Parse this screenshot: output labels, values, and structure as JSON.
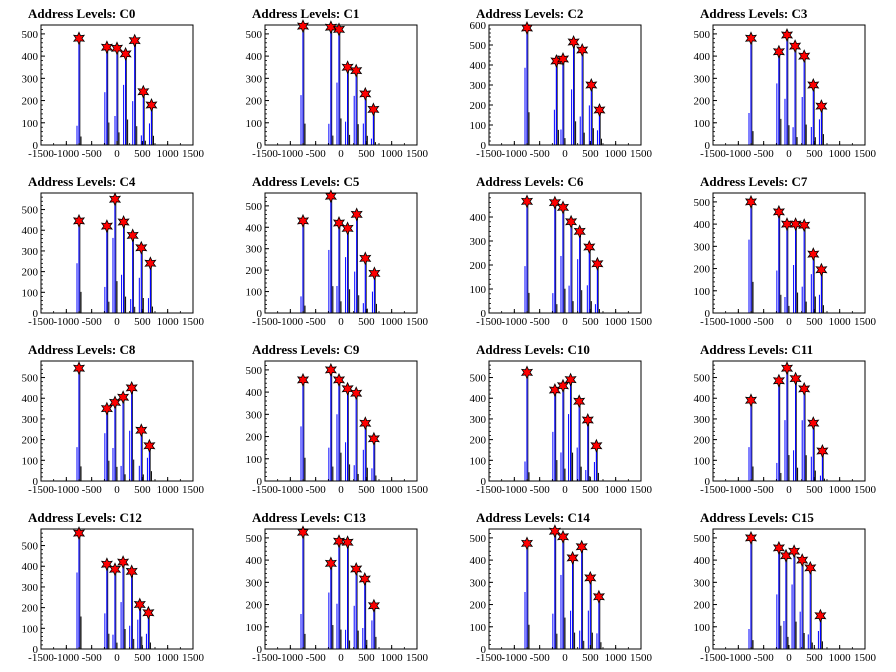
{
  "figure": {
    "title_prefix": "Address Levels: ",
    "colors": {
      "histogram_blue": "#0000ff",
      "histogram_black": "#000000",
      "marker_red": "#ff0000",
      "axis": "#000000"
    }
  },
  "chart_data": [
    {
      "type": "bar",
      "title": "Address Levels: C0",
      "xlim": [
        -1500,
        1500
      ],
      "ylim": [
        0,
        540
      ],
      "xticks": [
        -1500,
        -1000,
        -500,
        0,
        500,
        1000,
        1500
      ],
      "yticks": [
        0,
        100,
        200,
        300,
        400,
        500
      ],
      "peaks": [
        {
          "x": -750,
          "y": 480
        },
        {
          "x": -200,
          "y": 440
        },
        {
          "x": 0,
          "y": 435
        },
        {
          "x": 170,
          "y": 410
        },
        {
          "x": 350,
          "y": 470
        },
        {
          "x": 520,
          "y": 240
        },
        {
          "x": 680,
          "y": 180
        }
      ]
    },
    {
      "type": "bar",
      "title": "Address Levels: C1",
      "xlim": [
        -1500,
        1500
      ],
      "ylim": [
        0,
        540
      ],
      "xticks": [
        -1500,
        -1000,
        -500,
        0,
        500,
        1000,
        1500
      ],
      "yticks": [
        0,
        100,
        200,
        300,
        400,
        500
      ],
      "peaks": [
        {
          "x": -750,
          "y": 535
        },
        {
          "x": -200,
          "y": 530
        },
        {
          "x": -40,
          "y": 520
        },
        {
          "x": 130,
          "y": 350
        },
        {
          "x": 300,
          "y": 335
        },
        {
          "x": 480,
          "y": 230
        },
        {
          "x": 640,
          "y": 160
        }
      ]
    },
    {
      "type": "bar",
      "title": "Address Levels: C2",
      "xlim": [
        -1500,
        1500
      ],
      "ylim": [
        0,
        600
      ],
      "xticks": [
        -1500,
        -1000,
        -500,
        0,
        500,
        1000,
        1500
      ],
      "yticks": [
        0,
        100,
        200,
        300,
        400,
        500,
        600
      ],
      "peaks": [
        {
          "x": -750,
          "y": 585
        },
        {
          "x": -170,
          "y": 420
        },
        {
          "x": -40,
          "y": 430
        },
        {
          "x": 170,
          "y": 515
        },
        {
          "x": 340,
          "y": 475
        },
        {
          "x": 520,
          "y": 300
        },
        {
          "x": 680,
          "y": 175
        }
      ]
    },
    {
      "type": "bar",
      "title": "Address Levels: C3",
      "xlim": [
        -1500,
        1500
      ],
      "ylim": [
        0,
        540
      ],
      "xticks": [
        -1500,
        -1000,
        -500,
        0,
        500,
        1000,
        1500
      ],
      "yticks": [
        0,
        100,
        200,
        300,
        400,
        500
      ],
      "peaks": [
        {
          "x": -750,
          "y": 480
        },
        {
          "x": -200,
          "y": 420
        },
        {
          "x": -40,
          "y": 495
        },
        {
          "x": 120,
          "y": 445
        },
        {
          "x": 300,
          "y": 400
        },
        {
          "x": 480,
          "y": 270
        },
        {
          "x": 640,
          "y": 175
        }
      ]
    },
    {
      "type": "bar",
      "title": "Address Levels: C4",
      "xlim": [
        -1500,
        1500
      ],
      "ylim": [
        0,
        580
      ],
      "xticks": [
        -1500,
        -1000,
        -500,
        0,
        500,
        1000,
        1500
      ],
      "yticks": [
        0,
        100,
        200,
        300,
        400,
        500
      ],
      "peaks": [
        {
          "x": -750,
          "y": 445
        },
        {
          "x": -200,
          "y": 420
        },
        {
          "x": -40,
          "y": 550
        },
        {
          "x": 130,
          "y": 440
        },
        {
          "x": 310,
          "y": 375
        },
        {
          "x": 480,
          "y": 315
        },
        {
          "x": 660,
          "y": 240
        }
      ]
    },
    {
      "type": "bar",
      "title": "Address Levels: C5",
      "xlim": [
        -1500,
        1500
      ],
      "ylim": [
        0,
        560
      ],
      "xticks": [
        -1500,
        -1000,
        -500,
        0,
        500,
        1000,
        1500
      ],
      "yticks": [
        0,
        100,
        200,
        300,
        400,
        500
      ],
      "peaks": [
        {
          "x": -750,
          "y": 430
        },
        {
          "x": -200,
          "y": 545
        },
        {
          "x": -40,
          "y": 420
        },
        {
          "x": 130,
          "y": 395
        },
        {
          "x": 310,
          "y": 460
        },
        {
          "x": 480,
          "y": 255
        },
        {
          "x": 660,
          "y": 185
        }
      ]
    },
    {
      "type": "bar",
      "title": "Address Levels: C6",
      "xlim": [
        -1500,
        1500
      ],
      "ylim": [
        0,
        500
      ],
      "xticks": [
        -1500,
        -1000,
        -500,
        0,
        500,
        1000,
        1500
      ],
      "yticks": [
        0,
        100,
        200,
        300,
        400
      ],
      "peaks": [
        {
          "x": -750,
          "y": 465
        },
        {
          "x": -200,
          "y": 460
        },
        {
          "x": -40,
          "y": 440
        },
        {
          "x": 120,
          "y": 380
        },
        {
          "x": 290,
          "y": 340
        },
        {
          "x": 480,
          "y": 275
        },
        {
          "x": 640,
          "y": 205
        }
      ]
    },
    {
      "type": "bar",
      "title": "Address Levels: C7",
      "xlim": [
        -1500,
        1500
      ],
      "ylim": [
        0,
        540
      ],
      "xticks": [
        -1500,
        -1000,
        -500,
        0,
        500,
        1000,
        1500
      ],
      "yticks": [
        0,
        100,
        200,
        300,
        400,
        500
      ],
      "peaks": [
        {
          "x": -750,
          "y": 500
        },
        {
          "x": -200,
          "y": 455
        },
        {
          "x": -40,
          "y": 400
        },
        {
          "x": 130,
          "y": 400
        },
        {
          "x": 300,
          "y": 395
        },
        {
          "x": 480,
          "y": 265
        },
        {
          "x": 640,
          "y": 195
        }
      ]
    },
    {
      "type": "bar",
      "title": "Address Levels: C8",
      "xlim": [
        -1500,
        1500
      ],
      "ylim": [
        0,
        580
      ],
      "xticks": [
        -1500,
        -1000,
        -500,
        0,
        500,
        1000,
        1500
      ],
      "yticks": [
        0,
        100,
        200,
        300,
        400,
        500
      ],
      "peaks": [
        {
          "x": -750,
          "y": 545
        },
        {
          "x": -200,
          "y": 350
        },
        {
          "x": -40,
          "y": 380
        },
        {
          "x": 120,
          "y": 405
        },
        {
          "x": 290,
          "y": 450
        },
        {
          "x": 480,
          "y": 245
        },
        {
          "x": 640,
          "y": 170
        }
      ]
    },
    {
      "type": "bar",
      "title": "Address Levels: C9",
      "xlim": [
        -1500,
        1500
      ],
      "ylim": [
        0,
        540
      ],
      "xticks": [
        -1500,
        -1000,
        -500,
        0,
        500,
        1000,
        1500
      ],
      "yticks": [
        0,
        100,
        200,
        300,
        400,
        500
      ],
      "peaks": [
        {
          "x": -750,
          "y": 455
        },
        {
          "x": -200,
          "y": 500
        },
        {
          "x": -40,
          "y": 455
        },
        {
          "x": 130,
          "y": 415
        },
        {
          "x": 300,
          "y": 395
        },
        {
          "x": 480,
          "y": 260
        },
        {
          "x": 650,
          "y": 190
        }
      ]
    },
    {
      "type": "bar",
      "title": "Address Levels: C10",
      "xlim": [
        -1500,
        1500
      ],
      "ylim": [
        0,
        580
      ],
      "xticks": [
        -1500,
        -1000,
        -500,
        0,
        500,
        1000,
        1500
      ],
      "yticks": [
        0,
        100,
        200,
        300,
        400,
        500
      ],
      "peaks": [
        {
          "x": -750,
          "y": 525
        },
        {
          "x": -200,
          "y": 440
        },
        {
          "x": -40,
          "y": 460
        },
        {
          "x": 110,
          "y": 490
        },
        {
          "x": 280,
          "y": 385
        },
        {
          "x": 450,
          "y": 295
        },
        {
          "x": 620,
          "y": 170
        }
      ]
    },
    {
      "type": "bar",
      "title": "Address Levels: C11",
      "xlim": [
        -1500,
        1500
      ],
      "ylim": [
        0,
        580
      ],
      "xticks": [
        -1500,
        -1000,
        -500,
        0,
        500,
        1000,
        1500
      ],
      "yticks": [
        0,
        100,
        200,
        300,
        400,
        500
      ],
      "peaks": [
        {
          "x": -750,
          "y": 390
        },
        {
          "x": -200,
          "y": 485
        },
        {
          "x": -40,
          "y": 545
        },
        {
          "x": 130,
          "y": 495
        },
        {
          "x": 300,
          "y": 445
        },
        {
          "x": 480,
          "y": 280
        },
        {
          "x": 660,
          "y": 145
        }
      ]
    },
    {
      "type": "bar",
      "title": "Address Levels: C12",
      "xlim": [
        -1500,
        1500
      ],
      "ylim": [
        0,
        580
      ],
      "xticks": [
        -1500,
        -1000,
        -500,
        0,
        500,
        1000,
        1500
      ],
      "yticks": [
        0,
        100,
        200,
        300,
        400,
        500
      ],
      "peaks": [
        {
          "x": -750,
          "y": 560
        },
        {
          "x": -200,
          "y": 410
        },
        {
          "x": -40,
          "y": 385
        },
        {
          "x": 120,
          "y": 420
        },
        {
          "x": 290,
          "y": 375
        },
        {
          "x": 450,
          "y": 215
        },
        {
          "x": 620,
          "y": 175
        }
      ]
    },
    {
      "type": "bar",
      "title": "Address Levels: C13",
      "xlim": [
        -1500,
        1500
      ],
      "ylim": [
        0,
        540
      ],
      "xticks": [
        -1500,
        -1000,
        -500,
        0,
        500,
        1000,
        1500
      ],
      "yticks": [
        0,
        100,
        200,
        300,
        400,
        500
      ],
      "peaks": [
        {
          "x": -750,
          "y": 525
        },
        {
          "x": -200,
          "y": 385
        },
        {
          "x": -40,
          "y": 485
        },
        {
          "x": 130,
          "y": 480
        },
        {
          "x": 300,
          "y": 360
        },
        {
          "x": 470,
          "y": 315
        },
        {
          "x": 650,
          "y": 195
        }
      ]
    },
    {
      "type": "bar",
      "title": "Address Levels: C14",
      "xlim": [
        -1500,
        1500
      ],
      "ylim": [
        0,
        540
      ],
      "xticks": [
        -1500,
        -1000,
        -500,
        0,
        500,
        1000,
        1500
      ],
      "yticks": [
        0,
        100,
        200,
        300,
        400,
        500
      ],
      "peaks": [
        {
          "x": -750,
          "y": 475
        },
        {
          "x": -200,
          "y": 530
        },
        {
          "x": -40,
          "y": 505
        },
        {
          "x": 150,
          "y": 410
        },
        {
          "x": 330,
          "y": 460
        },
        {
          "x": 500,
          "y": 320
        },
        {
          "x": 670,
          "y": 235
        }
      ]
    },
    {
      "type": "bar",
      "title": "Address Levels: C15",
      "xlim": [
        -1500,
        1500
      ],
      "ylim": [
        0,
        540
      ],
      "xticks": [
        -1500,
        -1000,
        -500,
        0,
        500,
        1000,
        1500
      ],
      "yticks": [
        0,
        100,
        200,
        300,
        400,
        500
      ],
      "peaks": [
        {
          "x": -750,
          "y": 500
        },
        {
          "x": -200,
          "y": 455
        },
        {
          "x": -60,
          "y": 420
        },
        {
          "x": 100,
          "y": 440
        },
        {
          "x": 260,
          "y": 400
        },
        {
          "x": 420,
          "y": 365
        },
        {
          "x": 620,
          "y": 150
        }
      ]
    }
  ]
}
